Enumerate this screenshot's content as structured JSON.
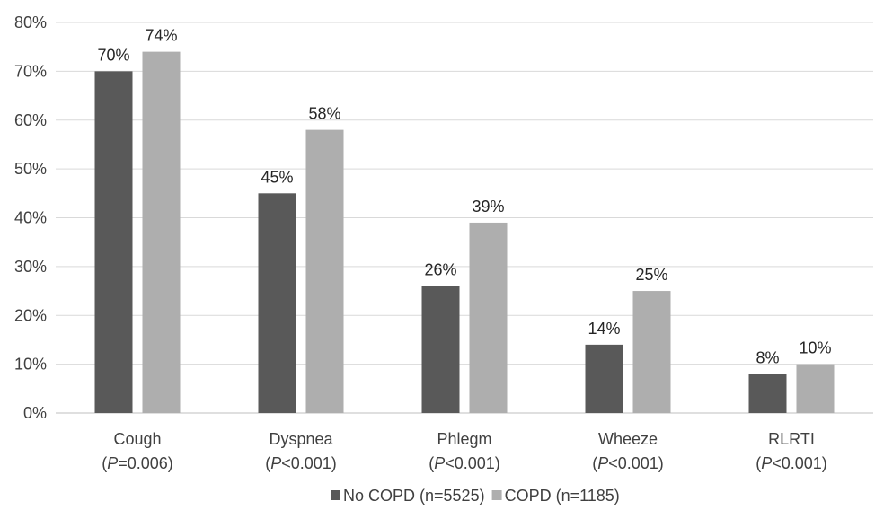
{
  "chart_data": {
    "type": "bar",
    "categories": [
      "Cough",
      "Dyspnea",
      "Phlegm",
      "Wheeze",
      "RLRTI"
    ],
    "category_notes": [
      {
        "p_symbol": "P",
        "p_rest": "=0.006"
      },
      {
        "p_symbol": "P",
        "p_rest": "<0.001"
      },
      {
        "p_symbol": "P",
        "p_rest": "<0.001"
      },
      {
        "p_symbol": "P",
        "p_rest": "<0.001"
      },
      {
        "p_symbol": "P",
        "p_rest": "<0.001"
      }
    ],
    "series": [
      {
        "name": "No COPD (n=5525)",
        "color": "#595959",
        "values": [
          70,
          45,
          26,
          14,
          8
        ],
        "labels": [
          "70%",
          "45%",
          "26%",
          "14%",
          "8%"
        ]
      },
      {
        "name": "COPD (n=1185)",
        "color": "#aeaeae",
        "values": [
          74,
          58,
          39,
          25,
          10
        ],
        "labels": [
          "74%",
          "58%",
          "39%",
          "25%",
          "10%"
        ]
      }
    ],
    "ylim": [
      0,
      80
    ],
    "yticks": [
      0,
      10,
      20,
      30,
      40,
      50,
      60,
      70,
      80
    ],
    "ytick_labels": [
      "0%",
      "10%",
      "20%",
      "30%",
      "40%",
      "50%",
      "60%",
      "70%",
      "80%"
    ],
    "grid": true,
    "legend_position": "bottom",
    "title": "",
    "xlabel": "",
    "ylabel": ""
  }
}
